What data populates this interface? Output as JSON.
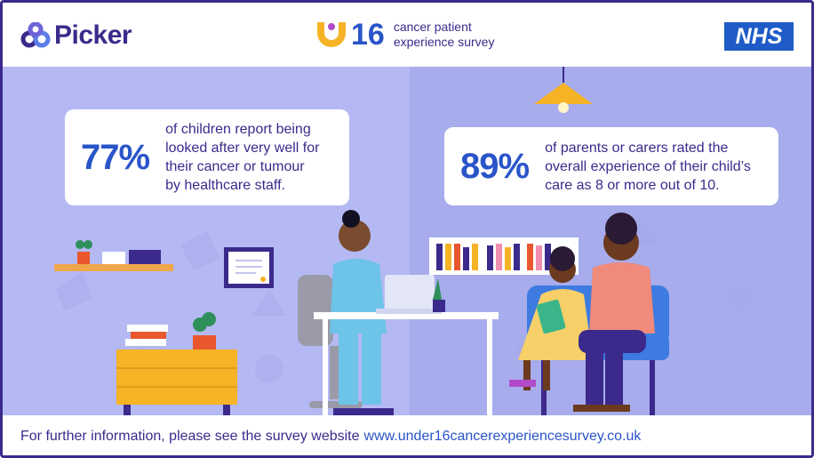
{
  "header": {
    "brand": "Picker",
    "survey_number": "16",
    "survey_name_line1": "cancer patient",
    "survey_name_line2": "experience survey",
    "nhs": "NHS"
  },
  "stats": [
    {
      "value": "77%",
      "lines": [
        "of children report being",
        "looked after very well for",
        "their cancer or tumour",
        "by healthcare staff."
      ]
    },
    {
      "value": "89%",
      "lines": [
        "of parents or carers rated the",
        "overall experience of their child’s",
        "care as 8 or more out of 10."
      ]
    }
  ],
  "footer": {
    "text": "For further information, please see the survey website",
    "link": "www.under16cancerexperiencesurvey.co.uk"
  },
  "colors": {
    "brand_purple": "#3b2a8c",
    "accent_blue": "#2a55c9",
    "wall_left": "#b4b9f3",
    "wall_right": "#a7acec",
    "nhs_blue": "#1f5cc7"
  }
}
